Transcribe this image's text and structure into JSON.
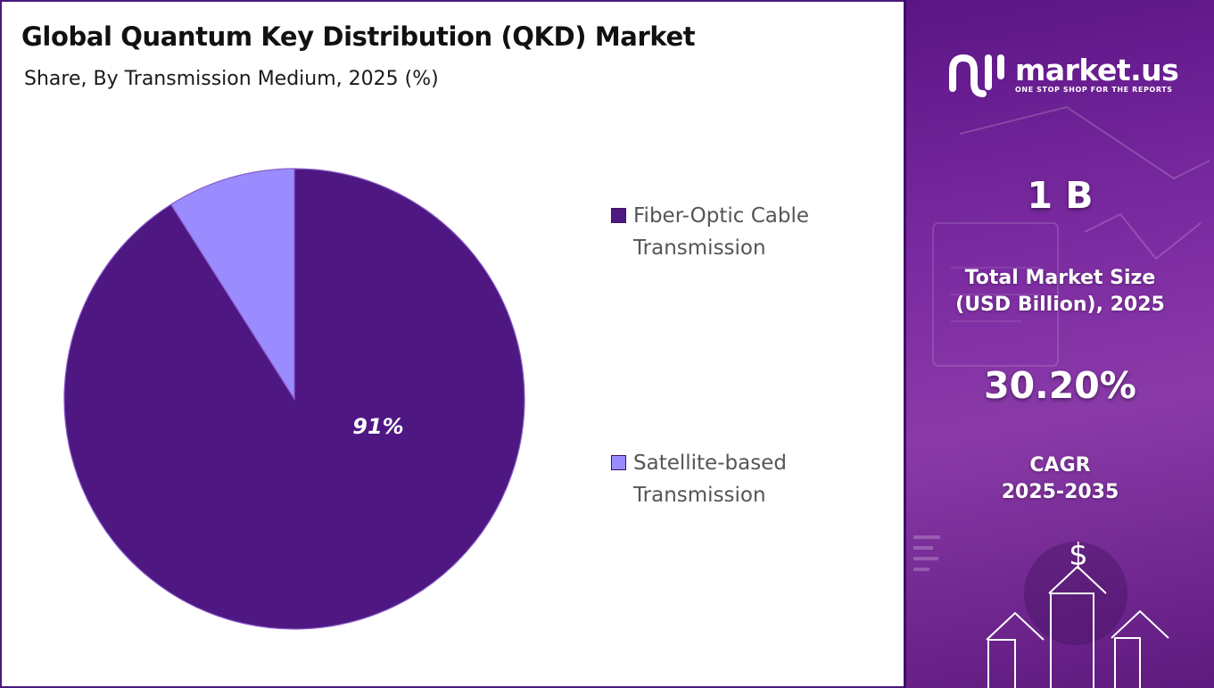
{
  "header": {
    "title": "Global Quantum Key Distribution (QKD) Market",
    "subtitle": "Share, By Transmission Medium, 2025 (%)"
  },
  "chart_data": {
    "type": "pie",
    "title": "Global Quantum Key Distribution (QKD) Market",
    "subtitle": "Share, By Transmission Medium, 2025 (%)",
    "slices": [
      {
        "name": "Fiber-Optic Cable Transmission",
        "value": 91,
        "label": "91%",
        "color": "#4e1782"
      },
      {
        "name": "Satellite-based Transmission",
        "value": 9,
        "label": "",
        "color": "#9a8cff"
      }
    ],
    "legend_position": "right"
  },
  "legend": [
    {
      "line1": "Fiber-Optic Cable",
      "line2": "Transmission",
      "color": "#4e1782"
    },
    {
      "line1": "Satellite-based",
      "line2": "Transmission",
      "color": "#9a8cff"
    }
  ],
  "sidebar": {
    "brand_name": "market.us",
    "brand_tagline": "ONE STOP SHOP FOR THE REPORTS",
    "market_size_value": "1 B",
    "market_size_label_line1": "Total Market Size",
    "market_size_label_line2": "(USD Billion), 2025",
    "cagr_value": "30.20%",
    "cagr_label_line1": "CAGR",
    "cagr_label_line2": "2025-2035",
    "dollar_symbol": "$"
  },
  "colors": {
    "accent": "#4e1782",
    "secondary": "#9a8cff",
    "sidebar_bg": "#7a2aa0"
  }
}
